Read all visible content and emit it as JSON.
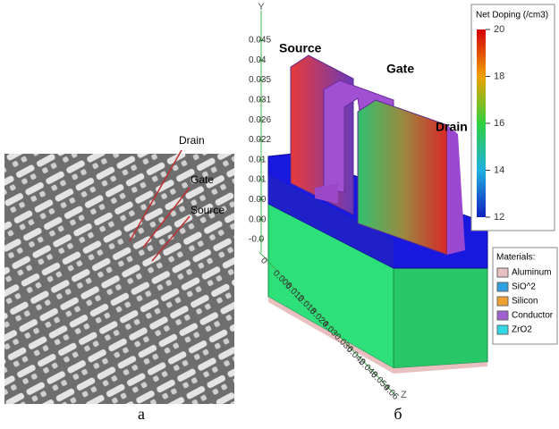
{
  "panel_a": {
    "labels": [
      "Drain",
      "Gate",
      "Source"
    ],
    "caption": "а"
  },
  "panel_b": {
    "labels": {
      "source": "Source",
      "gate": "Gate",
      "drain": "Drain"
    },
    "axes": {
      "y": "Y",
      "z": "Z",
      "y_ticks": [
        "0.045",
        "0.04",
        "0.035",
        "0.031",
        "0.026",
        "0.022",
        "0.01",
        "0.01",
        "0.00",
        "0.00",
        "-0.0"
      ],
      "z_ticks": [
        "0",
        "0.006",
        "0.012",
        "0.018",
        "0.024",
        "0.03",
        "0.036",
        "0.042",
        "0.048",
        "0.054",
        "0.06"
      ]
    },
    "colorbar": {
      "title": "Net Doping (/cm3)",
      "ticks": [
        "20",
        "18",
        "16",
        "14",
        "12"
      ]
    },
    "materials": {
      "title": "Materials:",
      "items": [
        "Aluminum",
        "SiO^2",
        "Silicon",
        "Conductor",
        "ZrO2"
      ]
    },
    "caption": "б"
  }
}
